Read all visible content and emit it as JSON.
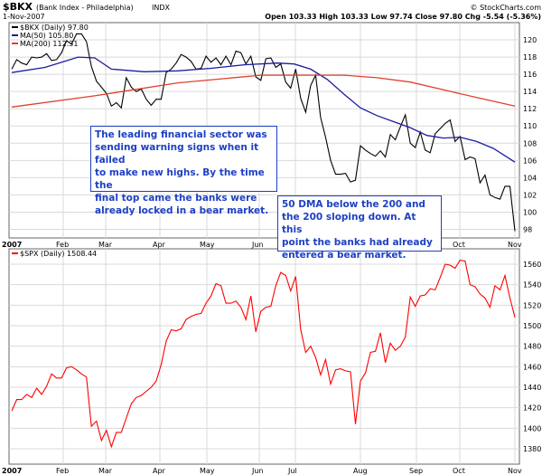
{
  "header": {
    "symbol": "$BKX",
    "name": "(Bank Index - Philadelphia)",
    "exchange": "INDX",
    "date": "1-Nov-2007",
    "ohlc": "Open 103.33  High 103.33  Low 97.74  Close 97.80  Chg -5.54 (-5.36%)",
    "watermark": "© StockCharts.com"
  },
  "colors": {
    "price_up": "#000000",
    "spx_price": "#ff0000",
    "ma50": "#1c1ca0",
    "ma200": "#e0402a",
    "annotation": "#1d3fc4",
    "grid": "#d9d9d9"
  },
  "chart_data": [
    {
      "type": "line",
      "panel": "top",
      "legend": [
        "$BKX (Daily) 97.80",
        "MA(50) 105.80",
        "MA(200) 112.31"
      ],
      "ylim": [
        97,
        122
      ],
      "y_ticks": [
        98,
        100,
        102,
        104,
        106,
        108,
        110,
        112,
        114,
        116,
        118,
        120
      ],
      "x_labels": [
        "2007",
        "Feb",
        "Mar",
        "Apr",
        "May",
        "Jun",
        "Jul",
        "Aug",
        "Sep",
        "Oct",
        "Nov"
      ],
      "series": [
        {
          "name": "$BKX",
          "x": [
            0,
            3,
            6,
            9,
            12,
            15,
            18,
            21,
            24,
            27,
            30,
            33,
            36,
            39,
            42,
            45,
            48,
            51,
            54,
            57,
            60,
            63,
            66,
            69,
            72,
            75,
            78,
            81,
            84,
            87,
            90,
            93,
            96,
            99,
            102,
            105,
            108,
            111,
            114,
            117,
            120,
            123,
            126,
            129,
            132,
            135,
            138,
            141,
            144,
            147,
            150,
            153,
            156,
            159,
            162,
            165,
            168,
            171,
            174,
            177,
            180,
            183,
            186,
            189,
            192,
            195,
            198,
            201,
            204,
            207,
            210,
            213,
            216,
            219,
            222,
            225,
            228,
            231,
            234,
            237,
            240,
            243,
            246,
            249,
            252,
            255,
            258,
            261,
            264,
            267,
            270,
            273,
            276,
            279,
            282,
            285,
            288,
            291,
            294,
            297,
            300,
            303
          ],
          "values": [
            116.6,
            117.7,
            117.3,
            117.1,
            118.0,
            117.9,
            118.0,
            118.4,
            117.6,
            117.7,
            118.5,
            119.9,
            119.5,
            120.7,
            120.7,
            119.8,
            116.9,
            115.2,
            114.5,
            113.8,
            112.3,
            112.7,
            112.1,
            115.6,
            114.5,
            114.0,
            114.3,
            113.1,
            112.4,
            113.1,
            113.1,
            116.2,
            116.6,
            117.3,
            118.3,
            118.0,
            117.5,
            116.6,
            116.7,
            118.1,
            117.4,
            117.9,
            117.1,
            118.1,
            117.1,
            118.7,
            118.5,
            117.2,
            118.1,
            115.7,
            115.3,
            117.8,
            117.9,
            116.8,
            117.2,
            115.1,
            114.4,
            116.6,
            113.2,
            111.6,
            114.7,
            115.9,
            111.0,
            108.7,
            106.0,
            104.4,
            104.4,
            104.5,
            103.5,
            103.7,
            107.7,
            107.2,
            106.8,
            106.5,
            107.1,
            106.4,
            109.0,
            108.4,
            109.9,
            111.3,
            108.0,
            107.5,
            109.3,
            107.2,
            106.9,
            109.1,
            109.7,
            110.3,
            110.7,
            108.2,
            108.8,
            106.1,
            106.4,
            106.2,
            103.4,
            104.3,
            102.0,
            101.7,
            101.5,
            103.0,
            103.0,
            97.8
          ]
        },
        {
          "name": "MA(50)",
          "x": [
            0,
            20,
            40,
            50,
            60,
            80,
            100,
            120,
            140,
            160,
            170,
            180,
            190,
            200,
            210,
            220,
            230,
            240,
            250,
            260,
            270,
            280,
            290,
            303
          ],
          "values": [
            116.2,
            116.8,
            118.0,
            117.9,
            116.6,
            116.3,
            116.4,
            116.7,
            117.1,
            117.3,
            117.2,
            116.6,
            115.4,
            113.7,
            112.1,
            111.2,
            110.5,
            109.8,
            108.9,
            108.6,
            108.7,
            108.2,
            107.4,
            105.8
          ]
        },
        {
          "name": "MA(200)",
          "x": [
            0,
            50,
            100,
            150,
            200,
            220,
            240,
            260,
            280,
            303
          ],
          "values": [
            112.2,
            113.5,
            115.0,
            115.9,
            115.9,
            115.6,
            115.1,
            114.2,
            113.3,
            112.3
          ]
        }
      ]
    },
    {
      "type": "line",
      "panel": "bottom",
      "legend": [
        "$SPX (Daily) 1508.44"
      ],
      "ylim": [
        1365,
        1575
      ],
      "y_ticks": [
        1380,
        1400,
        1420,
        1440,
        1460,
        1480,
        1500,
        1520,
        1540,
        1560
      ],
      "x_labels": [
        "2007",
        "Feb",
        "Mar",
        "Apr",
        "May",
        "Jun",
        "Jul",
        "Aug",
        "Sep",
        "Oct",
        "Nov"
      ],
      "series": [
        {
          "name": "$SPX",
          "x": [
            0,
            3,
            6,
            9,
            12,
            15,
            18,
            21,
            24,
            27,
            30,
            33,
            36,
            39,
            42,
            45,
            48,
            51,
            54,
            57,
            60,
            63,
            66,
            69,
            72,
            75,
            78,
            81,
            84,
            87,
            90,
            93,
            96,
            99,
            102,
            105,
            108,
            111,
            114,
            117,
            120,
            123,
            126,
            129,
            132,
            135,
            138,
            141,
            144,
            147,
            150,
            153,
            156,
            159,
            162,
            165,
            168,
            171,
            174,
            177,
            180,
            183,
            186,
            189,
            192,
            195,
            198,
            201,
            204,
            207,
            210,
            213,
            216,
            219,
            222,
            225,
            228,
            231,
            234,
            237,
            240,
            243,
            246,
            249,
            252,
            255,
            258,
            261,
            264,
            267,
            270,
            273,
            276,
            279,
            282,
            285,
            288,
            291,
            294,
            297,
            300,
            303
          ],
          "values": [
            1417,
            1428,
            1428,
            1433,
            1430,
            1439,
            1433,
            1441,
            1453,
            1449,
            1449,
            1459,
            1460,
            1457,
            1453,
            1450,
            1402,
            1407,
            1388,
            1398,
            1382,
            1396,
            1396,
            1410,
            1424,
            1430,
            1432,
            1436,
            1440,
            1446,
            1462,
            1485,
            1496,
            1495,
            1497,
            1506,
            1509,
            1511,
            1512,
            1522,
            1529,
            1541,
            1539,
            1522,
            1522,
            1524,
            1518,
            1506,
            1529,
            1494,
            1514,
            1518,
            1519,
            1539,
            1552,
            1549,
            1534,
            1548,
            1496,
            1474,
            1480,
            1469,
            1452,
            1467,
            1443,
            1457,
            1458,
            1456,
            1455,
            1404,
            1446,
            1454,
            1474,
            1475,
            1493,
            1464,
            1483,
            1476,
            1480,
            1489,
            1528,
            1519,
            1529,
            1530,
            1536,
            1535,
            1547,
            1560,
            1559,
            1556,
            1564,
            1563,
            1540,
            1538,
            1531,
            1527,
            1518,
            1539,
            1535,
            1549,
            1527,
            1508
          ]
        }
      ]
    }
  ],
  "annotations": {
    "note1": "The leading financial sector was\nsending warning signs when it failed\nto make new highs. By the time the\nfinal top came the banks were\nalready locked in a bear market.",
    "note2": "50 DMA below the 200 and\nthe 200 sloping down. At this\npoint the banks had already\nentered a bear market."
  }
}
